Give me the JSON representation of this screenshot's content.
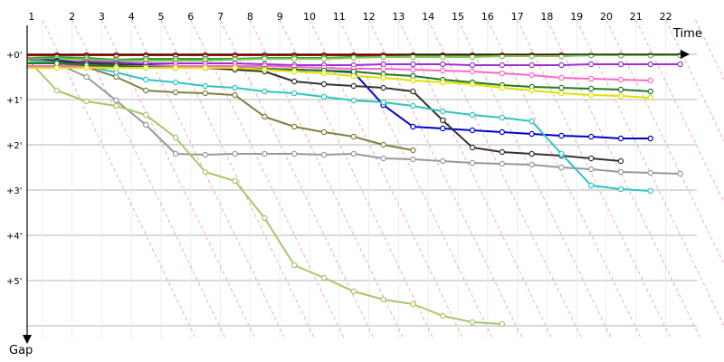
{
  "chart_data": {
    "type": "line",
    "title": "",
    "xlabel": "Time",
    "ylabel": "Gap",
    "x_ticks": [
      "1",
      "2",
      "3",
      "4",
      "5",
      "6",
      "7",
      "8",
      "9",
      "10",
      "11",
      "12",
      "13",
      "14",
      "15",
      "16",
      "17",
      "18",
      "19",
      "20",
      "21",
      "22"
    ],
    "y_ticks": [
      "+0'",
      "+1'",
      "+2'",
      "+3'",
      "+4'",
      "+5'"
    ],
    "xlim": [
      0,
      23.2
    ],
    "ylim_minutes": [
      0,
      6.3
    ],
    "grid": true,
    "legend": "none",
    "series": [
      {
        "color": "#e00000",
        "values": [
          0.02,
          0.02,
          0.02,
          0.02,
          0.02,
          0.02,
          0.02,
          0.02,
          0.02,
          0.02,
          0.02,
          0.02,
          0.02,
          0.02,
          0.02,
          0.02,
          0.02,
          0.02,
          0.02,
          0.02,
          0.02,
          0.02,
          0.02
        ]
      },
      {
        "color": "#2ca02c",
        "values": [
          0.08,
          0.06,
          0.08,
          0.12,
          0.1,
          0.1,
          0.1,
          0.1,
          0.08,
          0.08,
          0.08,
          0.06,
          0.06,
          0.04,
          0.04,
          0.04,
          0.04,
          0.04,
          0.04,
          0.02,
          0.02,
          0.02,
          0.02
        ]
      },
      {
        "color": "#7ec850",
        "values": [
          0.1,
          0.1,
          0.12,
          0.14,
          0.14,
          0.14,
          0.14,
          0.12,
          0.1,
          0.1,
          0.1,
          0.08,
          0.06,
          0.06,
          0.06,
          0.06,
          0.04,
          0.04,
          0.04,
          0.02,
          0.02,
          0.02,
          0.02
        ]
      },
      {
        "color": "#0000cc",
        "values": [
          0.1,
          0.14,
          0.18,
          0.22,
          0.24,
          0.26,
          0.28,
          0.3,
          0.32,
          0.34,
          0.36,
          0.4,
          1.12,
          1.6,
          1.64,
          1.68,
          1.72,
          1.76,
          1.8,
          1.82,
          1.86,
          1.86
        ]
      },
      {
        "color": "#9a30d0",
        "values": [
          0.2,
          0.18,
          0.16,
          0.18,
          0.2,
          0.2,
          0.2,
          0.2,
          0.22,
          0.24,
          0.24,
          0.24,
          0.22,
          0.22,
          0.22,
          0.24,
          0.24,
          0.24,
          0.24,
          0.22,
          0.22,
          0.22,
          0.22
        ]
      },
      {
        "color": "#333333",
        "values": [
          0.12,
          0.16,
          0.2,
          0.22,
          0.26,
          0.28,
          0.3,
          0.34,
          0.38,
          0.6,
          0.66,
          0.7,
          0.74,
          0.82,
          1.46,
          2.06,
          2.16,
          2.2,
          2.24,
          2.3,
          2.36
        ]
      },
      {
        "color": "#999999",
        "values": [
          0.06,
          0.2,
          0.5,
          1.02,
          1.56,
          2.2,
          2.22,
          2.2,
          2.2,
          2.2,
          2.22,
          2.2,
          2.3,
          2.32,
          2.36,
          2.4,
          2.42,
          2.44,
          2.5,
          2.54,
          2.6,
          2.62,
          2.64
        ]
      },
      {
        "color": "#808040",
        "values": [
          0.1,
          0.18,
          0.28,
          0.5,
          0.8,
          0.84,
          0.86,
          0.9,
          1.38,
          1.6,
          1.72,
          1.82,
          2.0,
          2.12
        ]
      },
      {
        "color": "#2ec4c4",
        "values": [
          0.14,
          0.2,
          0.26,
          0.4,
          0.56,
          0.62,
          0.7,
          0.74,
          0.82,
          0.86,
          0.94,
          1.02,
          1.06,
          1.14,
          1.26,
          1.34,
          1.4,
          1.48,
          2.2,
          2.9,
          2.98,
          3.02
        ]
      },
      {
        "color": "#a6c869",
        "values": [
          0.1,
          0.8,
          1.04,
          1.14,
          1.34,
          1.84,
          2.6,
          2.8,
          3.62,
          4.66,
          4.94,
          5.24,
          5.42,
          5.52,
          5.78,
          5.92,
          5.96
        ]
      },
      {
        "color": "#ff66cc",
        "values": [
          0.26,
          0.26,
          0.26,
          0.26,
          0.26,
          0.26,
          0.26,
          0.26,
          0.26,
          0.28,
          0.3,
          0.32,
          0.32,
          0.34,
          0.36,
          0.38,
          0.42,
          0.46,
          0.52,
          0.54,
          0.56,
          0.58
        ]
      },
      {
        "color": "#1f7a1f",
        "values": [
          0.2,
          0.2,
          0.24,
          0.26,
          0.28,
          0.3,
          0.3,
          0.3,
          0.32,
          0.34,
          0.36,
          0.38,
          0.44,
          0.48,
          0.56,
          0.62,
          0.68,
          0.72,
          0.74,
          0.76,
          0.78,
          0.82
        ]
      },
      {
        "color": "#e0e000",
        "values": [
          0.3,
          0.3,
          0.3,
          0.3,
          0.3,
          0.3,
          0.3,
          0.3,
          0.34,
          0.38,
          0.42,
          0.48,
          0.52,
          0.58,
          0.62,
          0.66,
          0.74,
          0.8,
          0.86,
          0.9,
          0.92,
          0.96
        ]
      }
    ]
  }
}
